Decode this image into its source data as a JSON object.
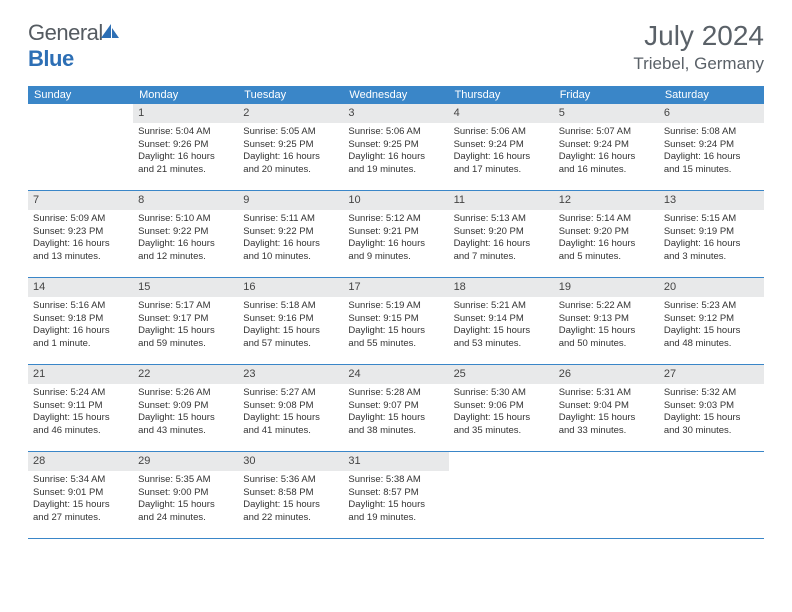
{
  "brand": {
    "word1": "General",
    "word2": "Blue"
  },
  "title": {
    "month": "July 2024",
    "location": "Triebel, Germany"
  },
  "colors": {
    "header_bg": "#3a86c8",
    "header_text": "#ffffff",
    "daynum_bg": "#e8e9ea",
    "rule": "#3a86c8",
    "body_text": "#333333",
    "title_text": "#5a6168"
  },
  "weekdays": [
    "Sunday",
    "Monday",
    "Tuesday",
    "Wednesday",
    "Thursday",
    "Friday",
    "Saturday"
  ],
  "weeks": [
    [
      {
        "n": "",
        "lines": [
          "",
          "",
          "",
          ""
        ]
      },
      {
        "n": "1",
        "lines": [
          "Sunrise: 5:04 AM",
          "Sunset: 9:26 PM",
          "Daylight: 16 hours",
          "and 21 minutes."
        ]
      },
      {
        "n": "2",
        "lines": [
          "Sunrise: 5:05 AM",
          "Sunset: 9:25 PM",
          "Daylight: 16 hours",
          "and 20 minutes."
        ]
      },
      {
        "n": "3",
        "lines": [
          "Sunrise: 5:06 AM",
          "Sunset: 9:25 PM",
          "Daylight: 16 hours",
          "and 19 minutes."
        ]
      },
      {
        "n": "4",
        "lines": [
          "Sunrise: 5:06 AM",
          "Sunset: 9:24 PM",
          "Daylight: 16 hours",
          "and 17 minutes."
        ]
      },
      {
        "n": "5",
        "lines": [
          "Sunrise: 5:07 AM",
          "Sunset: 9:24 PM",
          "Daylight: 16 hours",
          "and 16 minutes."
        ]
      },
      {
        "n": "6",
        "lines": [
          "Sunrise: 5:08 AM",
          "Sunset: 9:24 PM",
          "Daylight: 16 hours",
          "and 15 minutes."
        ]
      }
    ],
    [
      {
        "n": "7",
        "lines": [
          "Sunrise: 5:09 AM",
          "Sunset: 9:23 PM",
          "Daylight: 16 hours",
          "and 13 minutes."
        ]
      },
      {
        "n": "8",
        "lines": [
          "Sunrise: 5:10 AM",
          "Sunset: 9:22 PM",
          "Daylight: 16 hours",
          "and 12 minutes."
        ]
      },
      {
        "n": "9",
        "lines": [
          "Sunrise: 5:11 AM",
          "Sunset: 9:22 PM",
          "Daylight: 16 hours",
          "and 10 minutes."
        ]
      },
      {
        "n": "10",
        "lines": [
          "Sunrise: 5:12 AM",
          "Sunset: 9:21 PM",
          "Daylight: 16 hours",
          "and 9 minutes."
        ]
      },
      {
        "n": "11",
        "lines": [
          "Sunrise: 5:13 AM",
          "Sunset: 9:20 PM",
          "Daylight: 16 hours",
          "and 7 minutes."
        ]
      },
      {
        "n": "12",
        "lines": [
          "Sunrise: 5:14 AM",
          "Sunset: 9:20 PM",
          "Daylight: 16 hours",
          "and 5 minutes."
        ]
      },
      {
        "n": "13",
        "lines": [
          "Sunrise: 5:15 AM",
          "Sunset: 9:19 PM",
          "Daylight: 16 hours",
          "and 3 minutes."
        ]
      }
    ],
    [
      {
        "n": "14",
        "lines": [
          "Sunrise: 5:16 AM",
          "Sunset: 9:18 PM",
          "Daylight: 16 hours",
          "and 1 minute."
        ]
      },
      {
        "n": "15",
        "lines": [
          "Sunrise: 5:17 AM",
          "Sunset: 9:17 PM",
          "Daylight: 15 hours",
          "and 59 minutes."
        ]
      },
      {
        "n": "16",
        "lines": [
          "Sunrise: 5:18 AM",
          "Sunset: 9:16 PM",
          "Daylight: 15 hours",
          "and 57 minutes."
        ]
      },
      {
        "n": "17",
        "lines": [
          "Sunrise: 5:19 AM",
          "Sunset: 9:15 PM",
          "Daylight: 15 hours",
          "and 55 minutes."
        ]
      },
      {
        "n": "18",
        "lines": [
          "Sunrise: 5:21 AM",
          "Sunset: 9:14 PM",
          "Daylight: 15 hours",
          "and 53 minutes."
        ]
      },
      {
        "n": "19",
        "lines": [
          "Sunrise: 5:22 AM",
          "Sunset: 9:13 PM",
          "Daylight: 15 hours",
          "and 50 minutes."
        ]
      },
      {
        "n": "20",
        "lines": [
          "Sunrise: 5:23 AM",
          "Sunset: 9:12 PM",
          "Daylight: 15 hours",
          "and 48 minutes."
        ]
      }
    ],
    [
      {
        "n": "21",
        "lines": [
          "Sunrise: 5:24 AM",
          "Sunset: 9:11 PM",
          "Daylight: 15 hours",
          "and 46 minutes."
        ]
      },
      {
        "n": "22",
        "lines": [
          "Sunrise: 5:26 AM",
          "Sunset: 9:09 PM",
          "Daylight: 15 hours",
          "and 43 minutes."
        ]
      },
      {
        "n": "23",
        "lines": [
          "Sunrise: 5:27 AM",
          "Sunset: 9:08 PM",
          "Daylight: 15 hours",
          "and 41 minutes."
        ]
      },
      {
        "n": "24",
        "lines": [
          "Sunrise: 5:28 AM",
          "Sunset: 9:07 PM",
          "Daylight: 15 hours",
          "and 38 minutes."
        ]
      },
      {
        "n": "25",
        "lines": [
          "Sunrise: 5:30 AM",
          "Sunset: 9:06 PM",
          "Daylight: 15 hours",
          "and 35 minutes."
        ]
      },
      {
        "n": "26",
        "lines": [
          "Sunrise: 5:31 AM",
          "Sunset: 9:04 PM",
          "Daylight: 15 hours",
          "and 33 minutes."
        ]
      },
      {
        "n": "27",
        "lines": [
          "Sunrise: 5:32 AM",
          "Sunset: 9:03 PM",
          "Daylight: 15 hours",
          "and 30 minutes."
        ]
      }
    ],
    [
      {
        "n": "28",
        "lines": [
          "Sunrise: 5:34 AM",
          "Sunset: 9:01 PM",
          "Daylight: 15 hours",
          "and 27 minutes."
        ]
      },
      {
        "n": "29",
        "lines": [
          "Sunrise: 5:35 AM",
          "Sunset: 9:00 PM",
          "Daylight: 15 hours",
          "and 24 minutes."
        ]
      },
      {
        "n": "30",
        "lines": [
          "Sunrise: 5:36 AM",
          "Sunset: 8:58 PM",
          "Daylight: 15 hours",
          "and 22 minutes."
        ]
      },
      {
        "n": "31",
        "lines": [
          "Sunrise: 5:38 AM",
          "Sunset: 8:57 PM",
          "Daylight: 15 hours",
          "and 19 minutes."
        ]
      },
      {
        "n": "",
        "lines": [
          "",
          "",
          "",
          ""
        ]
      },
      {
        "n": "",
        "lines": [
          "",
          "",
          "",
          ""
        ]
      },
      {
        "n": "",
        "lines": [
          "",
          "",
          "",
          ""
        ]
      }
    ]
  ]
}
